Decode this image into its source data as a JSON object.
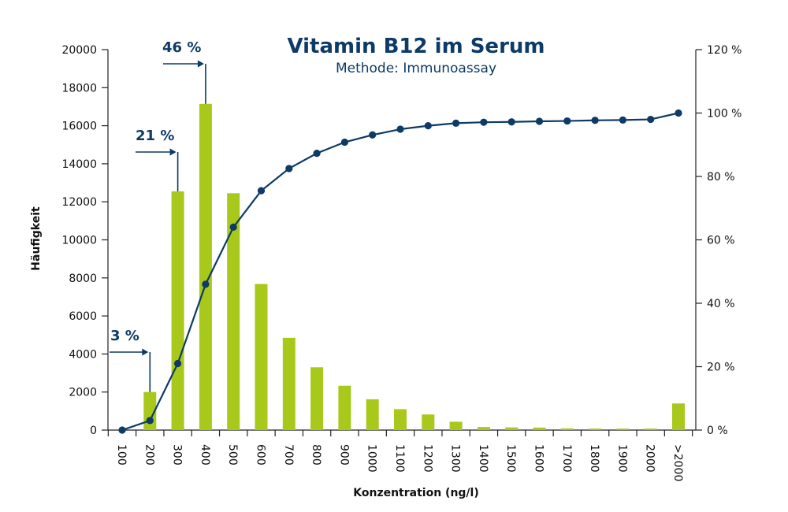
{
  "chart_data": {
    "type": "bar",
    "title": "Vitamin B12 im Serum",
    "subtitle": "Methode: Immunoassay",
    "xlabel": "Konzentration (ng/l)",
    "ylabel": "Häufigkeit",
    "categories": [
      "100",
      "200",
      "300",
      "400",
      "500",
      "600",
      "700",
      "800",
      "900",
      "1000",
      "1100",
      "1200",
      "1300",
      "1400",
      "1500",
      "1600",
      "1700",
      "1800",
      "1900",
      "2000",
      ">2000"
    ],
    "series": [
      {
        "values": [
          0,
          2000,
          12550,
          17150,
          12450,
          7680,
          4850,
          3300,
          2330,
          1620,
          1100,
          820,
          440,
          160,
          140,
          130,
          90,
          80,
          80,
          80,
          1400
        ],
        "color": "#a8c81b"
      },
      {
        "values": [
          0,
          3,
          21,
          46,
          64,
          75.5,
          82.5,
          87.3,
          90.8,
          93.1,
          94.9,
          96.0,
          96.8,
          97.1,
          97.2,
          97.4,
          97.5,
          97.7,
          97.8,
          98.0,
          100
        ],
        "color": "#0d3a66"
      }
    ],
    "ylim": [
      0,
      20000
    ],
    "y2lim": [
      0,
      120
    ],
    "yticks": [
      "0",
      "2000",
      "4000",
      "6000",
      "8000",
      "10000",
      "12000",
      "14000",
      "16000",
      "18000",
      "20000"
    ],
    "y2ticks": [
      "0 %",
      "20 %",
      "40 %",
      "60 %",
      "80 %",
      "100 %",
      "120 %"
    ],
    "annotations": [
      {
        "text": "3 %",
        "category": "200"
      },
      {
        "text": "21 %",
        "category": "300"
      },
      {
        "text": "46 %",
        "category": "400"
      }
    ],
    "grid": false
  }
}
